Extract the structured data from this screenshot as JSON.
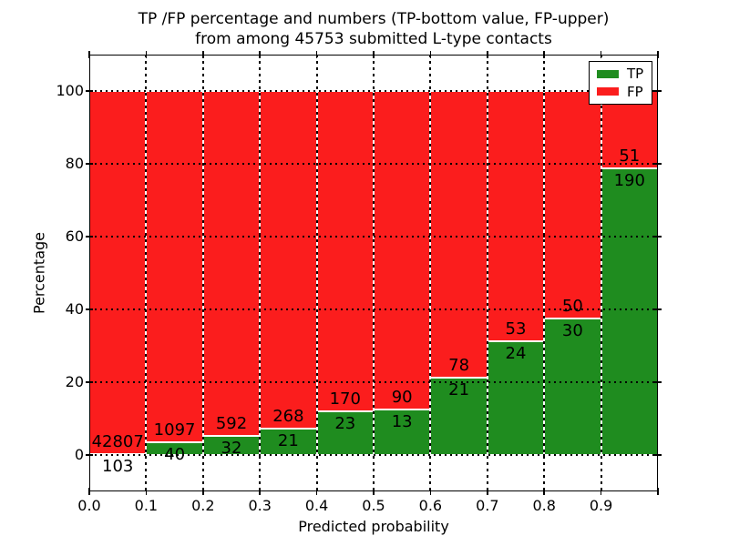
{
  "chart_data": {
    "type": "bar",
    "stacked": true,
    "normalized_to_percent": true,
    "title_lines": [
      "TP /FP percentage and numbers (TP-bottom value, FP-upper)",
      "from among 45753 submitted L-type contacts"
    ],
    "total_submitted": 45753,
    "xlabel": "Predicted probability",
    "ylabel": "Percentage",
    "xlim": [
      0.0,
      1.0
    ],
    "ylim": [
      -10,
      110
    ],
    "bin_width": 0.1,
    "bin_starts": [
      0.0,
      0.1,
      0.2,
      0.3,
      0.4,
      0.5,
      0.6,
      0.7,
      0.8,
      0.9
    ],
    "xtick_labels": [
      "0.0",
      "0.1",
      "0.2",
      "0.3",
      "0.4",
      "0.5",
      "0.6",
      "0.7",
      "0.8",
      "0.9"
    ],
    "ytick_values": [
      0,
      20,
      40,
      60,
      80,
      100
    ],
    "grid": true,
    "grid_style": "dotted",
    "series": [
      {
        "name": "TP",
        "color": "#1f8c1f",
        "counts": [
          103,
          40,
          32,
          21,
          23,
          13,
          21,
          24,
          30,
          190
        ]
      },
      {
        "name": "FP",
        "color": "#fb1d1d",
        "counts": [
          42807,
          1097,
          592,
          268,
          170,
          90,
          78,
          53,
          50,
          51
        ]
      }
    ],
    "tp_percent_heights": [
      0.24,
      3.52,
      5.13,
      7.27,
      11.92,
      12.62,
      21.21,
      31.17,
      37.5,
      78.84
    ],
    "legend": {
      "position": "upper right",
      "items": [
        {
          "label": "TP",
          "color": "#1f8c1f"
        },
        {
          "label": "FP",
          "color": "#fb1d1d"
        }
      ]
    }
  }
}
